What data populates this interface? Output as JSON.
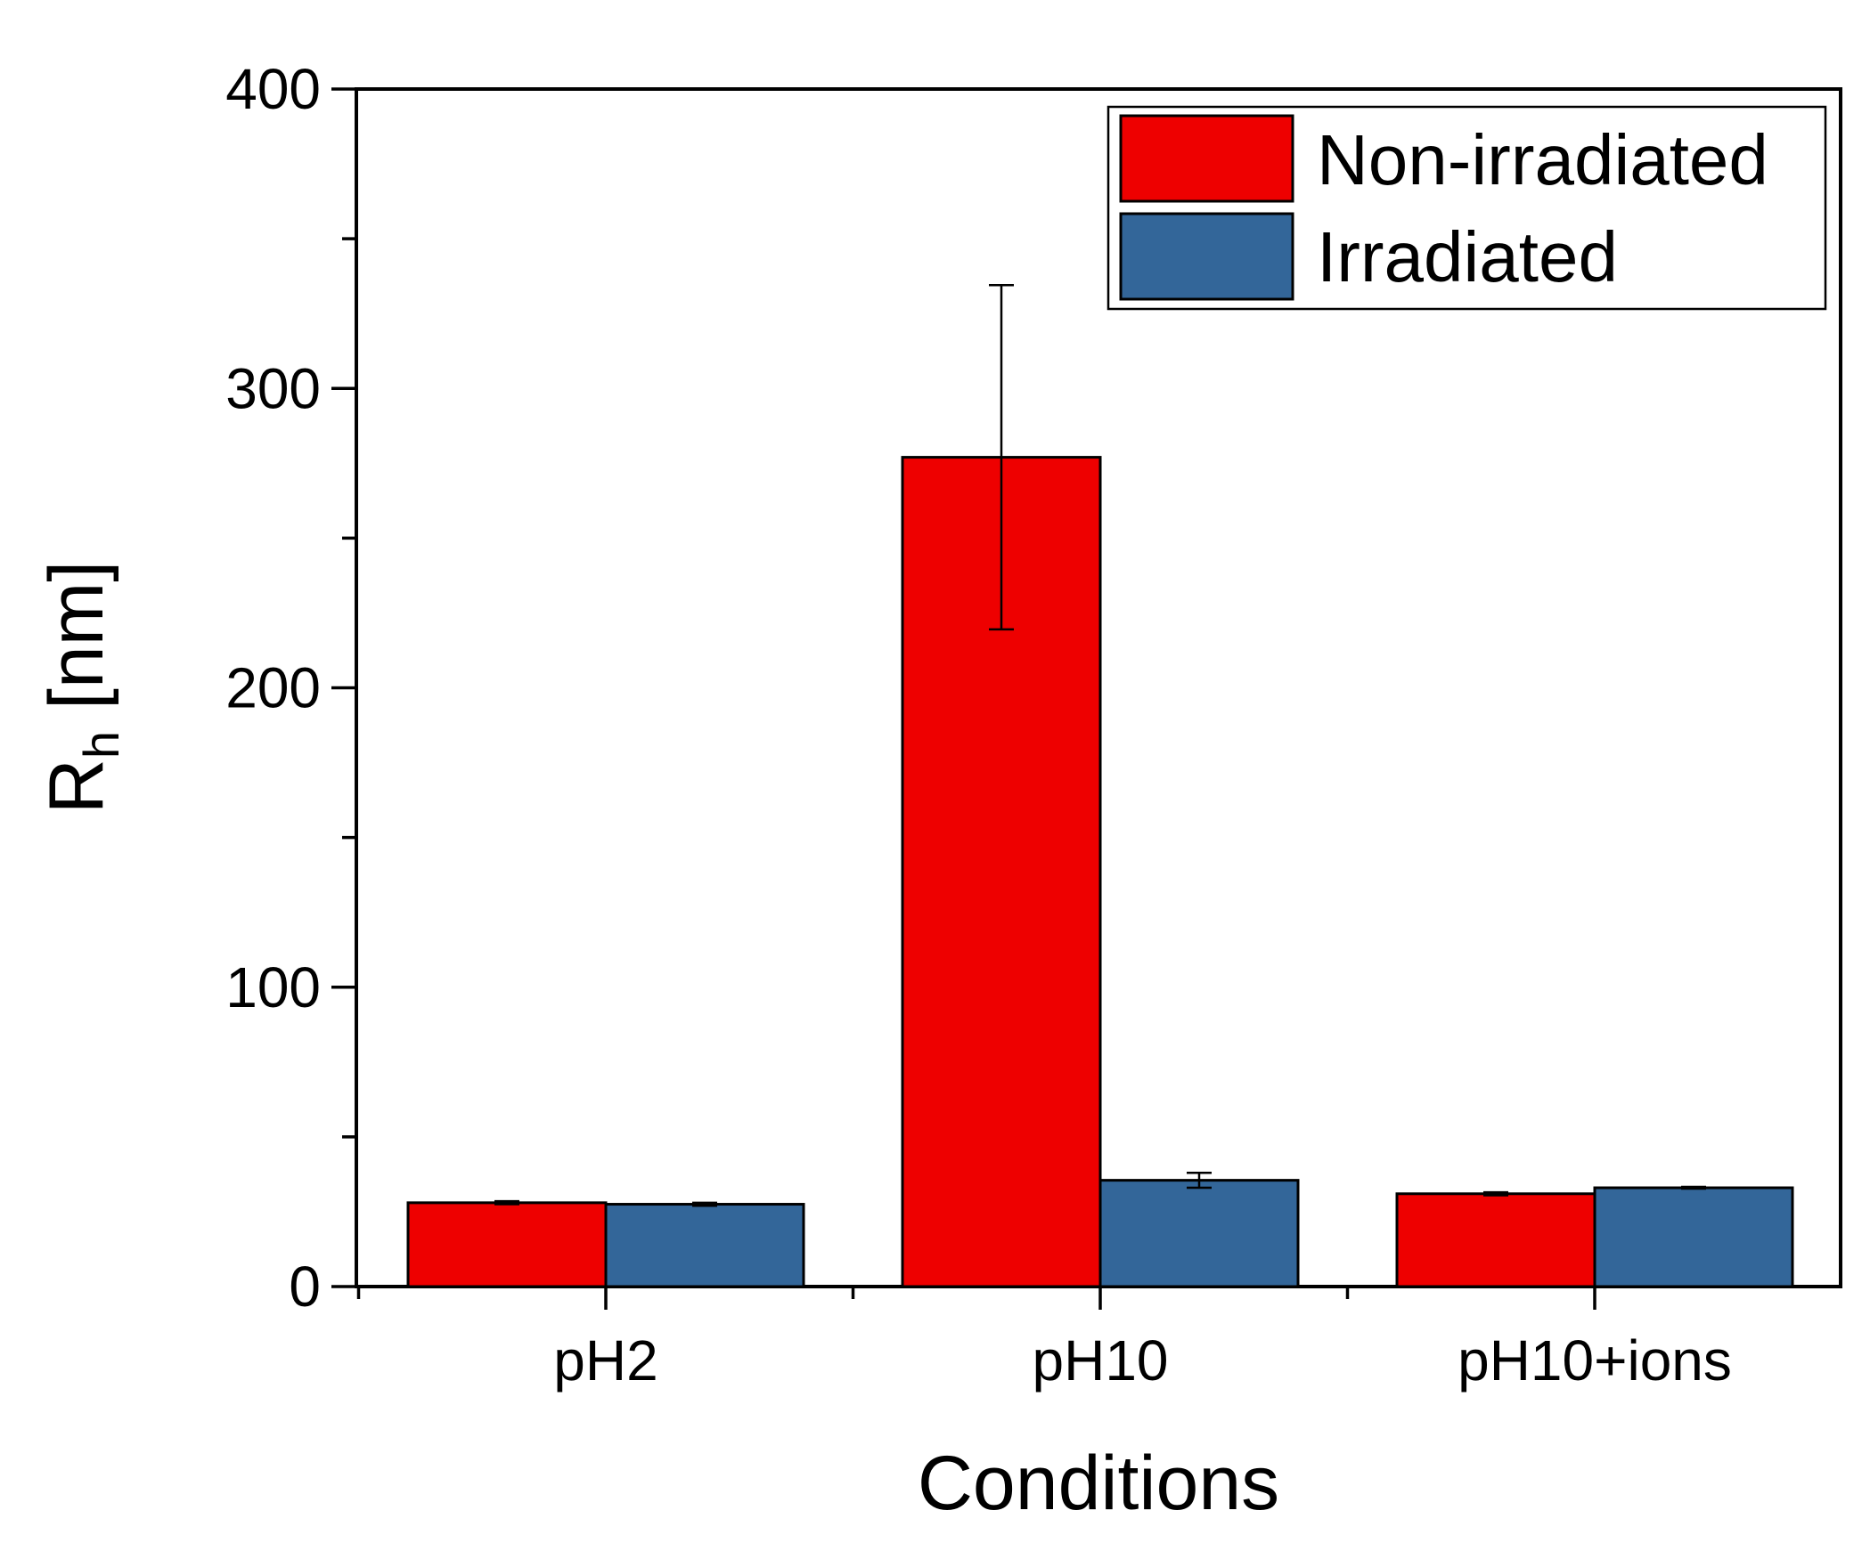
{
  "chart_data": {
    "type": "bar",
    "title": "",
    "xlabel": "Conditions",
    "ylabel": "R",
    "ylabel_subscript": "h",
    "ylabel_unit": " [nm]",
    "categories": [
      "pH2",
      "pH10",
      "pH10+ions"
    ],
    "series": [
      {
        "name": "Non-irradiated",
        "color": "#EE0000",
        "values": [
          28,
          277,
          31
        ],
        "errors": [
          0.5,
          57.5,
          0.5
        ]
      },
      {
        "name": "Irradiated",
        "color": "#336699",
        "values": [
          27.5,
          35.5,
          33
        ],
        "errors": [
          0.5,
          2.5,
          0.3
        ]
      }
    ],
    "ylim": [
      0,
      400
    ],
    "yticks": [
      0,
      100,
      200,
      300,
      400
    ],
    "yminor_step": 50,
    "grid": false,
    "legend_position": "top-right"
  }
}
